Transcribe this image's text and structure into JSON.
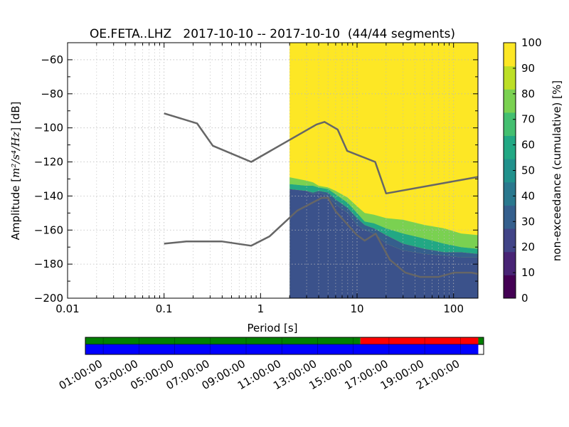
{
  "chart_data": [
    {
      "type": "heatmap",
      "title": "OE.FETA..LHZ   2017-10-10 -- 2017-10-10  (44/44 segments)",
      "xlabel": "Period [s]",
      "ylabel_prefix": "Amplitude [",
      "ylabel_units": "m²/s⁴/Hz",
      "ylabel_suffix": "] [dB]",
      "xscale": "log",
      "xlim": [
        0.01,
        179
      ],
      "ylim": [
        -200,
        -50
      ],
      "grid": true,
      "x_ticks": [
        {
          "value": 0.01,
          "label": "0.01"
        },
        {
          "value": 0.1,
          "label": "0.1"
        },
        {
          "value": 1,
          "label": "1"
        },
        {
          "value": 10,
          "label": "10"
        },
        {
          "value": 100,
          "label": "100"
        }
      ],
      "y_ticks": [
        {
          "value": -60,
          "label": "−60"
        },
        {
          "value": -80,
          "label": "−80"
        },
        {
          "value": -100,
          "label": "−100"
        },
        {
          "value": -120,
          "label": "−120"
        },
        {
          "value": -140,
          "label": "−140"
        },
        {
          "value": -160,
          "label": "−160"
        },
        {
          "value": -180,
          "label": "−180"
        },
        {
          "value": -200,
          "label": "−200"
        }
      ],
      "data_period_range": [
        2.0,
        179
      ],
      "percentile_bands": {
        "period": [
          2.0,
          3.0,
          3.5,
          4.0,
          5.0,
          6.0,
          8.0,
          10,
          12,
          15,
          20,
          30,
          50,
          80,
          120,
          179
        ],
        "p10": [
          -136,
          -137,
          -139,
          -138,
          -140,
          -145,
          -150,
          -157,
          -160,
          -162,
          -168,
          -172,
          -174,
          -175,
          -176,
          -176
        ],
        "p30": [
          -136,
          -137,
          -138,
          -137,
          -138,
          -142,
          -147,
          -153,
          -157,
          -159,
          -163,
          -168,
          -171,
          -173,
          -173,
          -174
        ],
        "p60": [
          -133,
          -134,
          -134,
          -135,
          -136,
          -139,
          -144,
          -150,
          -155,
          -156,
          -159,
          -162,
          -165,
          -168,
          -170,
          -171
        ],
        "p90": [
          -129,
          -131,
          -132,
          -134,
          -135,
          -137,
          -141,
          -146,
          -150,
          -151,
          -153,
          -154,
          -157,
          -159,
          -162,
          -163
        ]
      },
      "noise_models": [
        {
          "name": "high noise model",
          "points": [
            [
              0.1,
              -91.5
            ],
            [
              0.22,
              -97.4
            ],
            [
              0.32,
              -110.5
            ],
            [
              0.8,
              -120
            ],
            [
              3.8,
              -98
            ],
            [
              4.6,
              -96.5
            ],
            [
              6.3,
              -101
            ],
            [
              7.9,
              -113.5
            ],
            [
              15.4,
              -120
            ],
            [
              20,
              -138.5
            ],
            [
              179,
              -128.8
            ]
          ]
        },
        {
          "name": "low noise model",
          "points": [
            [
              0.1,
              -168
            ],
            [
              0.17,
              -166.7
            ],
            [
              0.4,
              -166.7
            ],
            [
              0.8,
              -169.2
            ],
            [
              1.24,
              -163.7
            ],
            [
              2.4,
              -148.6
            ],
            [
              4.3,
              -141.1
            ],
            [
              5.0,
              -141.1
            ],
            [
              6.0,
              -149
            ],
            [
              10,
              -163
            ],
            [
              12,
              -166.2
            ],
            [
              15.6,
              -162.1
            ],
            [
              21.9,
              -177.5
            ],
            [
              31.6,
              -185
            ],
            [
              45,
              -187.5
            ],
            [
              70,
              -187.5
            ],
            [
              101,
              -185
            ],
            [
              154,
              -185
            ],
            [
              179,
              -185.8
            ]
          ]
        }
      ]
    },
    {
      "type": "colorbar",
      "label": "non-exceedance (cumulative) [%]",
      "range": [
        0,
        100
      ],
      "ticks": [
        0,
        10,
        20,
        30,
        40,
        50,
        60,
        70,
        80,
        90,
        100
      ],
      "colors": [
        "#440154",
        "#482475",
        "#414487",
        "#355f8d",
        "#2a788e",
        "#21918c",
        "#22a884",
        "#44bf70",
        "#7ad151",
        "#bddf26",
        "#fde725"
      ]
    },
    {
      "type": "timeline",
      "tick_labels": [
        "01:00:00",
        "03:00:00",
        "05:00:00",
        "07:00:00",
        "09:00:00",
        "11:00:00",
        "13:00:00",
        "15:00:00",
        "17:00:00",
        "19:00:00",
        "21:00:00"
      ],
      "tick_hours": [
        1,
        3,
        5,
        7,
        9,
        11,
        13,
        15,
        17,
        19,
        21
      ],
      "top_bar_segments": [
        {
          "start": 0.0,
          "end": 15.4,
          "color": "#008000"
        },
        {
          "start": 15.4,
          "end": 22.0,
          "color": "#ff0000"
        },
        {
          "start": 22.0,
          "end": 22.3,
          "color": "#008000"
        }
      ],
      "bottom_bar_segments": [
        {
          "start": 0.0,
          "end": 22.0,
          "color": "#0000ff"
        }
      ]
    }
  ],
  "colors": {
    "data_background": "#fde725",
    "noise_model_line": "#666666",
    "band_p10_p30": "#355f8d",
    "band_p30_p60": "#22a884",
    "band_p60_p90": "#7ad151",
    "band_below": "#3b528b"
  }
}
